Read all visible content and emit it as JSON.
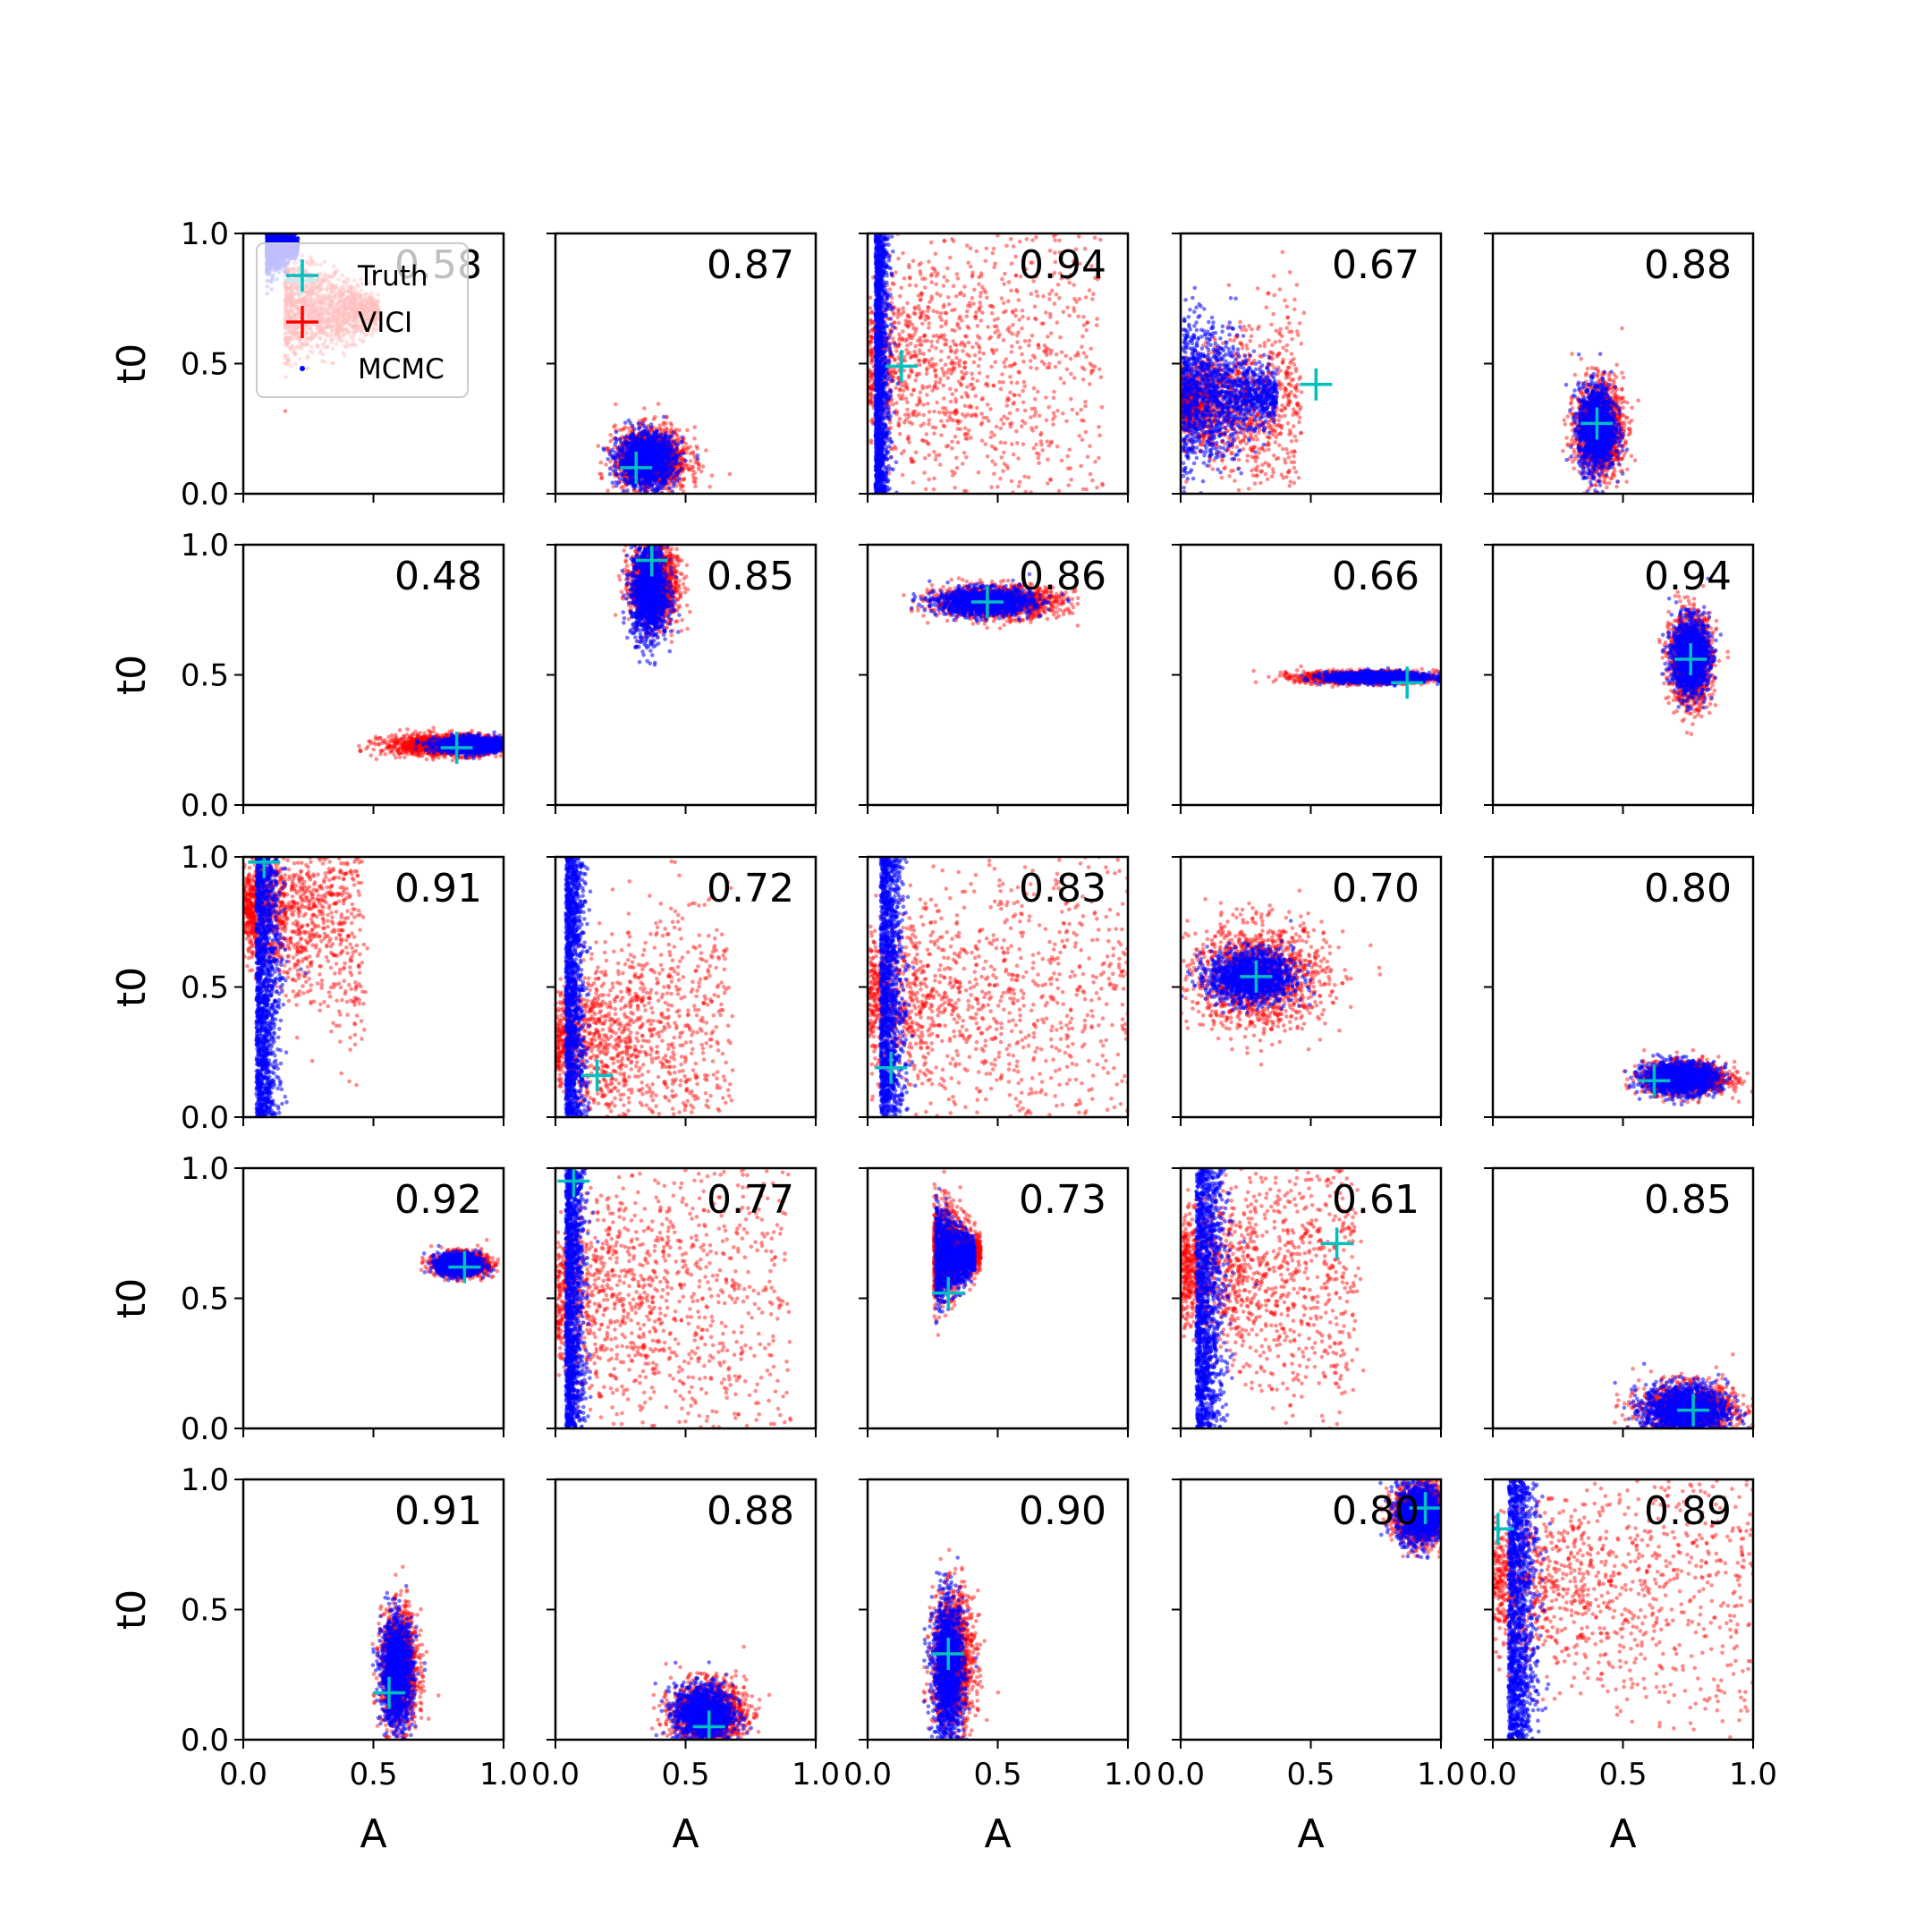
{
  "figure": {
    "legend": {
      "entries": [
        {
          "label": "Truth",
          "color": "#00bfbf",
          "marker": "plus"
        },
        {
          "label": "VICI",
          "color": "#ff0000",
          "marker": "plus"
        },
        {
          "label": "MCMC",
          "color": "#0000ff",
          "marker": "dot"
        }
      ]
    },
    "colors": {
      "vici": "#ff0000",
      "mcmc": "#0000ff",
      "truth": "#00bfbf"
    }
  },
  "chart_data": {
    "type": "scatter",
    "rows": 5,
    "cols": 5,
    "xlabel": "A",
    "ylabel": "t0",
    "xlim": [
      0,
      1
    ],
    "ylim": [
      0,
      1
    ],
    "xticks": [
      "0.0",
      "0.5",
      "1.0"
    ],
    "yticks": [
      "0.0",
      "0.5",
      "1.0"
    ],
    "series_names": [
      "VICI",
      "MCMC",
      "Truth"
    ],
    "panels": [
      {
        "overlap": "0.58",
        "truth": {
          "A": 0.22,
          "t0": 0.82
        },
        "vici": {
          "shape": "broad",
          "cx": 0.25,
          "cy": 0.7,
          "sx": 0.12,
          "sy": 0.1
        },
        "mcmc": {
          "shape": "broad",
          "cx": 0.12,
          "cy": 0.95,
          "sx": 0.04,
          "sy": 0.05
        }
      },
      {
        "overlap": "0.87",
        "truth": {
          "A": 0.31,
          "t0": 0.1
        },
        "vici": {
          "shape": "blob",
          "cx": 0.37,
          "cy": 0.13,
          "sx": 0.07,
          "sy": 0.06
        },
        "mcmc": {
          "shape": "blob",
          "cx": 0.35,
          "cy": 0.13,
          "sx": 0.055,
          "sy": 0.05
        }
      },
      {
        "overlap": "0.94",
        "truth": {
          "A": 0.13,
          "t0": 0.49
        },
        "vici": {
          "shape": "fan",
          "cx": 0.0,
          "cy": 0.5,
          "sx": 0.4,
          "sy": 0.35
        },
        "mcmc": {
          "shape": "wall",
          "cx": 0.03,
          "cy": 0.5,
          "sx": 0.03,
          "sy": 0.5
        }
      },
      {
        "overlap": "0.67",
        "truth": {
          "A": 0.52,
          "t0": 0.42
        },
        "vici": {
          "shape": "fan",
          "cx": 0.15,
          "cy": 0.35,
          "sx": 0.2,
          "sy": 0.15
        },
        "mcmc": {
          "shape": "wedge",
          "cx": 0.1,
          "cy": 0.38,
          "sx": 0.12,
          "sy": 0.15
        }
      },
      {
        "overlap": "0.88",
        "truth": {
          "A": 0.4,
          "t0": 0.27
        },
        "vici": {
          "shape": "blob",
          "cx": 0.41,
          "cy": 0.25,
          "sx": 0.045,
          "sy": 0.09
        },
        "mcmc": {
          "shape": "blob",
          "cx": 0.4,
          "cy": 0.25,
          "sx": 0.035,
          "sy": 0.08
        }
      },
      {
        "overlap": "0.48",
        "truth": {
          "A": 0.82,
          "t0": 0.22
        },
        "vici": {
          "shape": "blob",
          "cx": 0.78,
          "cy": 0.23,
          "sx": 0.12,
          "sy": 0.02
        },
        "mcmc": {
          "shape": "blob",
          "cx": 0.88,
          "cy": 0.23,
          "sx": 0.07,
          "sy": 0.015
        }
      },
      {
        "overlap": "0.85",
        "truth": {
          "A": 0.37,
          "t0": 0.94
        },
        "vici": {
          "shape": "blob",
          "cx": 0.38,
          "cy": 0.85,
          "sx": 0.045,
          "sy": 0.08
        },
        "mcmc": {
          "shape": "blob",
          "cx": 0.36,
          "cy": 0.82,
          "sx": 0.035,
          "sy": 0.09
        }
      },
      {
        "overlap": "0.86",
        "truth": {
          "A": 0.46,
          "t0": 0.78
        },
        "vici": {
          "shape": "blob",
          "cx": 0.5,
          "cy": 0.78,
          "sx": 0.12,
          "sy": 0.03
        },
        "mcmc": {
          "shape": "blob",
          "cx": 0.45,
          "cy": 0.78,
          "sx": 0.09,
          "sy": 0.025
        }
      },
      {
        "overlap": "0.66",
        "truth": {
          "A": 0.87,
          "t0": 0.47
        },
        "vici": {
          "shape": "blob",
          "cx": 0.72,
          "cy": 0.49,
          "sx": 0.13,
          "sy": 0.012
        },
        "mcmc": {
          "shape": "blob",
          "cx": 0.76,
          "cy": 0.49,
          "sx": 0.1,
          "sy": 0.01
        }
      },
      {
        "overlap": "0.94",
        "truth": {
          "A": 0.76,
          "t0": 0.56
        },
        "vici": {
          "shape": "blob",
          "cx": 0.76,
          "cy": 0.56,
          "sx": 0.04,
          "sy": 0.085
        },
        "mcmc": {
          "shape": "blob",
          "cx": 0.76,
          "cy": 0.57,
          "sx": 0.035,
          "sy": 0.07
        }
      },
      {
        "overlap": "0.91",
        "truth": {
          "A": 0.08,
          "t0": 0.98
        },
        "vici": {
          "shape": "fan",
          "cx": 0.05,
          "cy": 0.8,
          "sx": 0.2,
          "sy": 0.2
        },
        "mcmc": {
          "shape": "wall",
          "cx": 0.05,
          "cy": 0.75,
          "sx": 0.05,
          "sy": 0.25
        }
      },
      {
        "overlap": "0.72",
        "truth": {
          "A": 0.16,
          "t0": 0.16
        },
        "vici": {
          "shape": "fan",
          "cx": 0.05,
          "cy": 0.3,
          "sx": 0.3,
          "sy": 0.25
        },
        "mcmc": {
          "shape": "wall",
          "cx": 0.04,
          "cy": 0.5,
          "sx": 0.04,
          "sy": 0.5
        }
      },
      {
        "overlap": "0.83",
        "truth": {
          "A": 0.09,
          "t0": 0.19
        },
        "vici": {
          "shape": "fan",
          "cx": 0.1,
          "cy": 0.45,
          "sx": 0.45,
          "sy": 0.3
        },
        "mcmc": {
          "shape": "wall",
          "cx": 0.05,
          "cy": 0.5,
          "sx": 0.05,
          "sy": 0.5
        }
      },
      {
        "overlap": "0.70",
        "truth": {
          "A": 0.29,
          "t0": 0.54
        },
        "vici": {
          "shape": "blob",
          "cx": 0.3,
          "cy": 0.54,
          "sx": 0.13,
          "sy": 0.1
        },
        "mcmc": {
          "shape": "blob",
          "cx": 0.27,
          "cy": 0.54,
          "sx": 0.08,
          "sy": 0.05
        }
      },
      {
        "overlap": "0.80",
        "truth": {
          "A": 0.62,
          "t0": 0.14
        },
        "vici": {
          "shape": "blob",
          "cx": 0.74,
          "cy": 0.15,
          "sx": 0.08,
          "sy": 0.03
        },
        "mcmc": {
          "shape": "blob",
          "cx": 0.72,
          "cy": 0.15,
          "sx": 0.07,
          "sy": 0.03
        }
      },
      {
        "overlap": "0.92",
        "truth": {
          "A": 0.85,
          "t0": 0.62
        },
        "vici": {
          "shape": "blob",
          "cx": 0.84,
          "cy": 0.63,
          "sx": 0.05,
          "sy": 0.022
        },
        "mcmc": {
          "shape": "blob",
          "cx": 0.83,
          "cy": 0.63,
          "sx": 0.04,
          "sy": 0.02
        }
      },
      {
        "overlap": "0.77",
        "truth": {
          "A": 0.07,
          "t0": 0.95
        },
        "vici": {
          "shape": "fan",
          "cx": 0.05,
          "cy": 0.5,
          "sx": 0.4,
          "sy": 0.35
        },
        "mcmc": {
          "shape": "wall",
          "cx": 0.04,
          "cy": 0.5,
          "sx": 0.04,
          "sy": 0.5
        }
      },
      {
        "overlap": "0.73",
        "truth": {
          "A": 0.31,
          "t0": 0.52
        },
        "vici": {
          "shape": "wedge",
          "cx": 0.3,
          "cy": 0.68,
          "sx": 0.06,
          "sy": 0.1
        },
        "mcmc": {
          "shape": "wedge",
          "cx": 0.3,
          "cy": 0.66,
          "sx": 0.05,
          "sy": 0.09
        }
      },
      {
        "overlap": "0.61",
        "truth": {
          "A": 0.6,
          "t0": 0.71
        },
        "vici": {
          "shape": "fan",
          "cx": 0.1,
          "cy": 0.6,
          "sx": 0.3,
          "sy": 0.25
        },
        "mcmc": {
          "shape": "wall",
          "cx": 0.06,
          "cy": 0.5,
          "sx": 0.06,
          "sy": 0.5
        }
      },
      {
        "overlap": "0.85",
        "truth": {
          "A": 0.77,
          "t0": 0.07
        },
        "vici": {
          "shape": "blob",
          "cx": 0.75,
          "cy": 0.07,
          "sx": 0.09,
          "sy": 0.05
        },
        "mcmc": {
          "shape": "blob",
          "cx": 0.74,
          "cy": 0.07,
          "sx": 0.08,
          "sy": 0.05
        }
      },
      {
        "overlap": "0.91",
        "truth": {
          "A": 0.56,
          "t0": 0.18
        },
        "vici": {
          "shape": "blob",
          "cx": 0.6,
          "cy": 0.27,
          "sx": 0.035,
          "sy": 0.11
        },
        "mcmc": {
          "shape": "blob",
          "cx": 0.59,
          "cy": 0.26,
          "sx": 0.03,
          "sy": 0.1
        }
      },
      {
        "overlap": "0.88",
        "truth": {
          "A": 0.59,
          "t0": 0.05
        },
        "vici": {
          "shape": "blob",
          "cx": 0.59,
          "cy": 0.1,
          "sx": 0.07,
          "sy": 0.06
        },
        "mcmc": {
          "shape": "blob",
          "cx": 0.57,
          "cy": 0.1,
          "sx": 0.055,
          "sy": 0.055
        }
      },
      {
        "overlap": "0.90",
        "truth": {
          "A": 0.31,
          "t0": 0.33
        },
        "vici": {
          "shape": "blob",
          "cx": 0.33,
          "cy": 0.3,
          "sx": 0.04,
          "sy": 0.13
        },
        "mcmc": {
          "shape": "blob",
          "cx": 0.31,
          "cy": 0.27,
          "sx": 0.03,
          "sy": 0.13
        }
      },
      {
        "overlap": "0.80",
        "truth": {
          "A": 0.94,
          "t0": 0.89
        },
        "vici": {
          "shape": "blob",
          "cx": 0.92,
          "cy": 0.87,
          "sx": 0.05,
          "sy": 0.06
        },
        "mcmc": {
          "shape": "blob",
          "cx": 0.92,
          "cy": 0.87,
          "sx": 0.045,
          "sy": 0.055
        }
      },
      {
        "overlap": "0.89",
        "truth": {
          "A": 0.02,
          "t0": 0.81
        },
        "vici": {
          "shape": "fan",
          "cx": 0.1,
          "cy": 0.6,
          "sx": 0.5,
          "sy": 0.3
        },
        "mcmc": {
          "shape": "wall",
          "cx": 0.06,
          "cy": 0.5,
          "sx": 0.06,
          "sy": 0.5
        }
      }
    ]
  }
}
